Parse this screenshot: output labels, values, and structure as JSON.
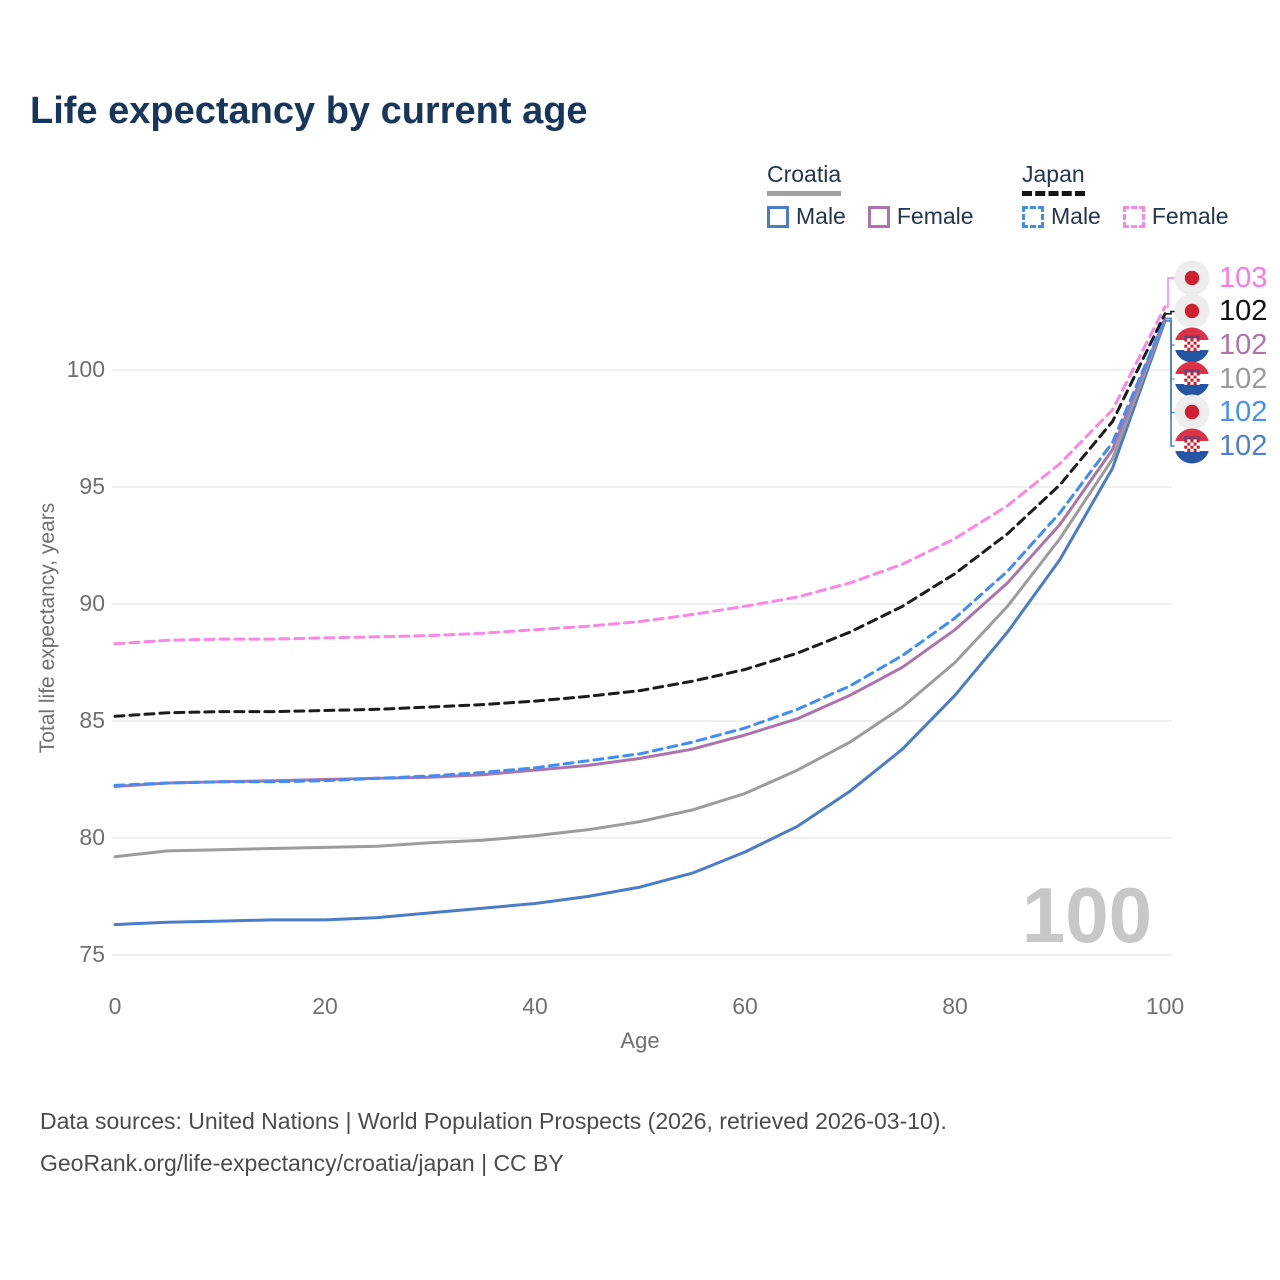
{
  "title": "Life expectancy by current age",
  "legend": {
    "croatia": {
      "label": "Croatia",
      "male": "Male",
      "female": "Female"
    },
    "japan": {
      "label": "Japan",
      "male": "Male",
      "female": "Female"
    }
  },
  "watermark_age": "100",
  "footer": {
    "line1": "Data sources: United Nations | World Population Prospects (2026, retrieved 2026-03-10).",
    "line2": "GeoRank.org/life-expectancy/croatia/japan | CC BY"
  },
  "icons": [
    "japan-flag-icon",
    "croatia-flag-icon"
  ],
  "colors": {
    "title_text": "#17365c",
    "legend_text": "#22364f",
    "axis_text": "#707070",
    "gridline": "#e7e7e7",
    "watermark": "#c7c7c7",
    "footer_text": "#4c4c4c",
    "croatia_underline": "#a0a0a0",
    "japan_underline": "#141414"
  },
  "chart_data": {
    "type": "line",
    "title": "Life expectancy by current age",
    "xlabel": "Age",
    "ylabel": "Total life expectancy, years",
    "x_ticks": [
      0,
      20,
      40,
      60,
      80,
      100
    ],
    "y_ticks": [
      75,
      80,
      85,
      90,
      95,
      100
    ],
    "xlim": [
      0,
      100
    ],
    "ylim": [
      74.5,
      103.5
    ],
    "grid": "horizontal-only",
    "legend_position": "top-right",
    "x": [
      0,
      5,
      10,
      15,
      20,
      25,
      30,
      35,
      40,
      45,
      50,
      55,
      60,
      65,
      70,
      75,
      80,
      85,
      90,
      95,
      100
    ],
    "series": [
      {
        "name": "Japan Female",
        "country": "japan",
        "sex": "Female",
        "line_style": "dashed",
        "color": "#fb86e4",
        "label_color": "#fb7ae1",
        "end_label": "103",
        "values": [
          88.3,
          88.45,
          88.5,
          88.5,
          88.55,
          88.6,
          88.65,
          88.75,
          88.9,
          89.05,
          89.25,
          89.55,
          89.9,
          90.3,
          90.9,
          91.7,
          92.8,
          94.2,
          96.0,
          98.3,
          102.7
        ]
      },
      {
        "name": "Japan Both sexes",
        "country": "japan",
        "sex": "Both",
        "line_style": "dashed",
        "color": "#1c1c1c",
        "label_color": "#111111",
        "end_label": "102",
        "values": [
          85.2,
          85.35,
          85.4,
          85.4,
          85.45,
          85.5,
          85.6,
          85.7,
          85.85,
          86.05,
          86.3,
          86.7,
          87.2,
          87.9,
          88.8,
          89.9,
          91.3,
          93.0,
          95.1,
          97.8,
          102.4
        ]
      },
      {
        "name": "Croatia Female",
        "country": "croatia",
        "sex": "Female",
        "line_style": "solid",
        "color": "#ad74ac",
        "label_color": "#b173ae",
        "end_label": "102",
        "values": [
          82.2,
          82.35,
          82.4,
          82.45,
          82.5,
          82.55,
          82.6,
          82.7,
          82.9,
          83.1,
          83.4,
          83.8,
          84.4,
          85.1,
          86.1,
          87.3,
          88.9,
          90.9,
          93.4,
          96.6,
          102.2
        ]
      },
      {
        "name": "Croatia Both sexes",
        "country": "croatia",
        "sex": "Both",
        "line_style": "solid",
        "color": "#9c9c9c",
        "label_color": "#9b9b9b",
        "end_label": "102",
        "values": [
          79.2,
          79.45,
          79.5,
          79.55,
          79.6,
          79.65,
          79.8,
          79.9,
          80.1,
          80.35,
          80.7,
          81.2,
          81.9,
          82.9,
          84.1,
          85.6,
          87.5,
          89.9,
          92.8,
          96.2,
          102.2
        ]
      },
      {
        "name": "Japan Male",
        "country": "japan",
        "sex": "Male",
        "line_style": "dashed",
        "color": "#3f8df5",
        "label_color": "#4791f0",
        "end_label": "102",
        "values": [
          82.25,
          82.35,
          82.4,
          82.4,
          82.45,
          82.55,
          82.65,
          82.8,
          83.0,
          83.3,
          83.6,
          84.1,
          84.7,
          85.5,
          86.5,
          87.8,
          89.4,
          91.4,
          93.9,
          96.9,
          102.2
        ]
      },
      {
        "name": "Croatia Male",
        "country": "croatia",
        "sex": "Male",
        "line_style": "solid",
        "color": "#4a7cc7",
        "label_color": "#4b7ed2",
        "end_label": "102",
        "values": [
          76.3,
          76.4,
          76.45,
          76.5,
          76.5,
          76.6,
          76.8,
          77.0,
          77.2,
          77.5,
          77.9,
          78.5,
          79.4,
          80.5,
          82.0,
          83.8,
          86.1,
          88.8,
          91.9,
          95.8,
          102.1
        ]
      }
    ]
  }
}
